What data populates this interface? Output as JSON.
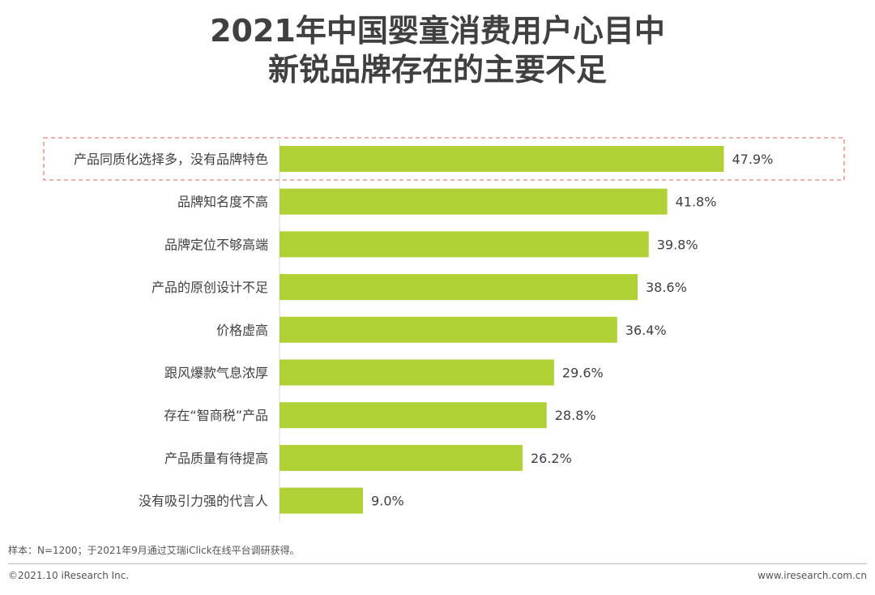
{
  "title": {
    "line1": "2021年中国婴童消费用户心目中",
    "line2": "新锐品牌存在的主要不足"
  },
  "chart_data": {
    "type": "bar",
    "orientation": "horizontal",
    "categories": [
      "产品同质化选择多，没有品牌特色",
      "品牌知名度不高",
      "品牌定位不够高端",
      "产品的原创设计不足",
      "价格虚高",
      "跟风爆款气息浓厚",
      "存在“智商税”产品",
      "产品质量有待提高",
      "没有吸引力强的代言人"
    ],
    "values": [
      47.9,
      41.8,
      39.8,
      38.6,
      36.4,
      29.6,
      28.8,
      26.2,
      9.0
    ],
    "value_labels": [
      "47.9%",
      "41.8%",
      "39.8%",
      "38.6%",
      "36.4%",
      "29.6%",
      "28.8%",
      "26.2%",
      "9.0%"
    ],
    "xlim": [
      0,
      50
    ],
    "highlighted_category": "产品同质化选择多，没有品牌特色",
    "bar_color": "#b0d136",
    "highlight_color": "#e8837a",
    "grid": false
  },
  "footer": {
    "note": "样本：N=1200；于2021年9月通过艾瑞iClick在线平台调研获得。",
    "copyright": "©2021.10 iResearch Inc.",
    "website": "www.iresearch.com.cn"
  }
}
